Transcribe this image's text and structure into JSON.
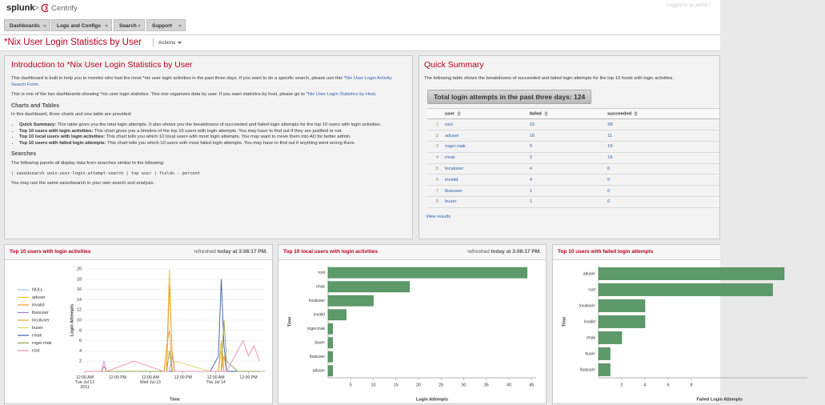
{
  "header": {
    "logo": "splunk",
    "separator": ">",
    "brand": "Centrify",
    "user_info": "Logged in as admin |",
    "tabs": [
      "Dashboards",
      "Logs and Configs",
      "Search",
      "Support"
    ]
  },
  "page_title": "*Nix User Login Statistics by User",
  "actions": "Actions",
  "intro": {
    "title": "Introduction to *Nix User Login Statistics by User",
    "paragraphs": [
      {
        "text": "This dashboard is built to help you to monitor who had the most *nix user login activities in the past three days. If you want to do a specific search, please use this ",
        "link": "*Nix User Login Activity Search Form",
        "after": "."
      },
      {
        "text": "This is one of the two dashboards showing *nix user login statistics. This one organizes data by user. If you want statistics by host, please go to ",
        "link": "*Nix User Login Statistics by Host",
        "after": "."
      }
    ],
    "charts_heading": "Charts and Tables",
    "charts_intro": "In this dashboard, three charts and one table are provided:",
    "list": [
      {
        "bold": "Quick Summary:",
        "text": " This table gives you the total login attempts. It also shows you the breakdowns of succeeded and failed login attempts for the top 10 users with login activities."
      },
      {
        "bold": "Top 10 users with login activities:",
        "text": " This chart gives you a timeline of the top 10 users with login attempts. You may have to find out if they are justified or not."
      },
      {
        "bold": "Top 10 local users with login activities:",
        "text": " This chart tells you which 10 local users with most login attempts. You may want to move them into AD for better admin."
      },
      {
        "bold": "Top 10 users with failed login attempts:",
        "text": " This chart tells you which 10 users with most failed login attempts. You may have to find out if anything went wrong there."
      }
    ],
    "searches_heading": "Searches",
    "searches_intro": "The following panels all display data from searches similar to the following:",
    "code": "| savedsearch unix-user-login-attempt-search | top user | fields - percent",
    "closing": "You may use the same savedsearch in your own search and analysis."
  },
  "summary": {
    "title": "Quick Summary",
    "description": "The following table shows the breakdowns of succeeded and failed login attempts for the top 10 hosts with login activities.",
    "total_label": "Total login attempts in the past three days: 124",
    "columns": [
      "user",
      "failed",
      "succeeded"
    ],
    "rows": [
      [
        "1",
        "root",
        "15",
        "28"
      ],
      [
        "2",
        "aduser",
        "16",
        "11"
      ],
      [
        "3",
        "roger.mak",
        "0",
        "19"
      ],
      [
        "4",
        "rmak",
        "2",
        "16"
      ],
      [
        "5",
        "localuser",
        "4",
        "6"
      ],
      [
        "6",
        "invalid",
        "4",
        "0"
      ],
      [
        "7",
        "lbasuser",
        "1",
        "0"
      ],
      [
        "8",
        "buser",
        "1",
        "0"
      ]
    ],
    "view_results": "View results"
  },
  "chart_data": [
    {
      "type": "line",
      "title": "Top 10 users with login activities",
      "refreshed": "refreshed",
      "refreshed_time": "today at 3:08:17 PM.",
      "y_label": "Login Attempts",
      "x_label": "Time",
      "x": [
        0,
        6,
        7,
        8,
        18,
        29,
        30,
        31,
        32,
        33,
        46,
        49,
        50,
        51,
        52,
        56,
        58,
        60,
        62,
        64
      ],
      "xlim": [
        0,
        66
      ],
      "xticks": [
        {
          "value": 0,
          "label": "12:00 AM\nTue Jul 12\n2011"
        },
        {
          "value": 12,
          "label": "12:00 PM"
        },
        {
          "value": 24,
          "label": "12:00 AM\nWed Jul 13"
        },
        {
          "value": 36,
          "label": "12:00 PM"
        },
        {
          "value": 48,
          "label": "12:00 AM\nThu Jul 14"
        },
        {
          "value": 60,
          "label": "12:00 PM"
        }
      ],
      "ylim": [
        0,
        20
      ],
      "yticks": [
        2,
        4,
        6,
        8,
        10,
        12,
        14,
        16,
        18,
        20
      ],
      "grid": true,
      "series": [
        {
          "name": "NULL",
          "color": "#9cc3e8",
          "values": [
            0,
            0,
            0,
            0,
            0,
            0,
            0,
            0,
            0,
            0,
            0,
            0,
            0,
            0,
            0,
            0,
            0,
            0,
            0,
            0
          ]
        },
        {
          "name": "aduser",
          "color": "#f2c417",
          "values": [
            0,
            0,
            0,
            0,
            0,
            0,
            2,
            20,
            3,
            0,
            0,
            0,
            4,
            0,
            0,
            0,
            0,
            0,
            0,
            0
          ]
        },
        {
          "name": "invalid",
          "color": "#f39a2b",
          "values": [
            0,
            0,
            0,
            0,
            0,
            0,
            0,
            17,
            4,
            0,
            0,
            0,
            0,
            3,
            0,
            0,
            0,
            0,
            0,
            0
          ]
        },
        {
          "name": "lbasuser",
          "color": "#b07ac0",
          "values": [
            0,
            0,
            1,
            0,
            0,
            0,
            0,
            0,
            0,
            0,
            0,
            0,
            0,
            0,
            0,
            0,
            0,
            0,
            0,
            0
          ]
        },
        {
          "name": "localuser",
          "color": "#e8a13c",
          "values": [
            0,
            0,
            0,
            0,
            0,
            0,
            5,
            8,
            0,
            0,
            0,
            0,
            6,
            0,
            0,
            0,
            0,
            0,
            0,
            0
          ]
        },
        {
          "name": "buser",
          "color": "#e3d36b",
          "values": [
            0,
            0,
            0,
            0,
            0,
            0,
            0,
            0,
            0,
            2,
            0,
            0,
            0,
            0,
            0,
            0,
            0,
            0,
            0,
            0
          ]
        },
        {
          "name": "rmak",
          "color": "#3b5ca8",
          "values": [
            0,
            0,
            0,
            0,
            0,
            0,
            0,
            0,
            0,
            0,
            0,
            3,
            18,
            5,
            0,
            0,
            0,
            0,
            0,
            0
          ]
        },
        {
          "name": "roger.mak",
          "color": "#8aa84a",
          "values": [
            0,
            0,
            0,
            0,
            0,
            0,
            0,
            4,
            0,
            0,
            0,
            0,
            0,
            10,
            2,
            0,
            0,
            0,
            0,
            0
          ]
        },
        {
          "name": "root",
          "color": "#e88db0",
          "values": [
            0,
            0,
            2,
            0,
            2,
            0,
            0,
            0,
            3,
            0,
            0,
            0,
            0,
            0,
            0,
            4,
            6,
            3,
            5,
            2
          ]
        }
      ]
    },
    {
      "type": "hbar",
      "title": "Top 10 local users with login activities",
      "refreshed": "refreshed",
      "refreshed_time": "today at 3:08:17 PM.",
      "y_label": "Time",
      "x_label": "Login Attempts",
      "color": "#5c9b69",
      "categories": [
        "root",
        "rmak",
        "localuser",
        "invalid",
        "roger.mak",
        "buser",
        "lbasuser",
        "aduser"
      ],
      "values": [
        44,
        18,
        10,
        4,
        1,
        1,
        1,
        1
      ],
      "xlim": [
        0,
        46
      ],
      "xticks": [
        5,
        10,
        15,
        20,
        25,
        30,
        35,
        40,
        45
      ]
    },
    {
      "type": "hbar",
      "title": "Top 10 users with failed login attempts",
      "y_label": "Time",
      "x_label": "Failed Login Attempts",
      "color": "#5c9b69",
      "categories": [
        "aduser",
        "root",
        "localuser",
        "invalid",
        "rmak",
        "buser",
        "lbasuser"
      ],
      "values": [
        16,
        15,
        4,
        4,
        2,
        1,
        1
      ],
      "xlim": [
        0,
        18
      ],
      "xticks": [
        2,
        4,
        6,
        8
      ]
    }
  ]
}
